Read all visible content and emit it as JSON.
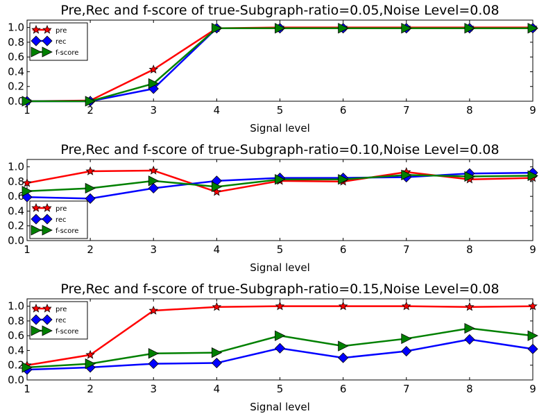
{
  "chart_data": [
    {
      "type": "line",
      "title": "Pre,Rec and f-score of true-Subgraph-ratio=0.05,Noise Level=0.08",
      "xlabel": "Signal level",
      "ylabel": "",
      "x": [
        1,
        2,
        3,
        4,
        5,
        6,
        7,
        8,
        9
      ],
      "xlim": [
        1,
        9
      ],
      "ylim": [
        0.0,
        1.1
      ],
      "xticks": [
        "1",
        "2",
        "3",
        "4",
        "5",
        "6",
        "7",
        "8",
        "9"
      ],
      "yticks": [
        "0.0",
        "0.2",
        "0.4",
        "0.6",
        "0.8",
        "1.0"
      ],
      "legend_position": "upper-left",
      "series": [
        {
          "name": "pre",
          "color": "#ff0000",
          "marker": "star",
          "values": [
            0.0,
            0.01,
            0.43,
            0.99,
            1.0,
            1.0,
            1.0,
            1.0,
            1.0
          ]
        },
        {
          "name": "rec",
          "color": "#0000ff",
          "marker": "diamond",
          "values": [
            0.0,
            0.0,
            0.17,
            0.99,
            0.99,
            0.99,
            0.99,
            0.99,
            0.99
          ]
        },
        {
          "name": "f-score",
          "color": "#008000",
          "marker": "triangle-right",
          "values": [
            0.0,
            0.0,
            0.24,
            0.99,
            0.99,
            0.99,
            0.99,
            0.99,
            0.99
          ]
        }
      ]
    },
    {
      "type": "line",
      "title": "Pre,Rec and f-score of true-Subgraph-ratio=0.10,Noise Level=0.08",
      "xlabel": "Signal level",
      "ylabel": "",
      "x": [
        1,
        2,
        3,
        4,
        5,
        6,
        7,
        8,
        9
      ],
      "xlim": [
        1,
        9
      ],
      "ylim": [
        0.0,
        1.1
      ],
      "xticks": [
        "1",
        "2",
        "3",
        "4",
        "5",
        "6",
        "7",
        "8",
        "9"
      ],
      "yticks": [
        "0.0",
        "0.2",
        "0.4",
        "0.6",
        "0.8",
        "1.0"
      ],
      "legend_position": "lower-left",
      "series": [
        {
          "name": "pre",
          "color": "#ff0000",
          "marker": "star",
          "values": [
            0.78,
            0.94,
            0.95,
            0.66,
            0.81,
            0.8,
            0.93,
            0.83,
            0.85
          ]
        },
        {
          "name": "rec",
          "color": "#0000ff",
          "marker": "diamond",
          "values": [
            0.59,
            0.57,
            0.71,
            0.81,
            0.85,
            0.85,
            0.86,
            0.91,
            0.92
          ]
        },
        {
          "name": "f-score",
          "color": "#008000",
          "marker": "triangle-right",
          "values": [
            0.67,
            0.71,
            0.81,
            0.73,
            0.83,
            0.83,
            0.89,
            0.87,
            0.88
          ]
        }
      ]
    },
    {
      "type": "line",
      "title": "Pre,Rec and f-score of true-Subgraph-ratio=0.15,Noise Level=0.08",
      "xlabel": "Signal level",
      "ylabel": "",
      "x": [
        1,
        2,
        3,
        4,
        5,
        6,
        7,
        8,
        9
      ],
      "xlim": [
        1,
        9
      ],
      "ylim": [
        0.0,
        1.1
      ],
      "xticks": [
        "1",
        "2",
        "3",
        "4",
        "5",
        "6",
        "7",
        "8",
        "9"
      ],
      "yticks": [
        "0.0",
        "0.2",
        "0.4",
        "0.6",
        "0.8",
        "1.0"
      ],
      "legend_position": "upper-left",
      "series": [
        {
          "name": "pre",
          "color": "#ff0000",
          "marker": "star",
          "values": [
            0.2,
            0.34,
            0.94,
            0.99,
            1.0,
            1.0,
            1.0,
            0.99,
            1.0
          ]
        },
        {
          "name": "rec",
          "color": "#0000ff",
          "marker": "diamond",
          "values": [
            0.14,
            0.17,
            0.22,
            0.23,
            0.43,
            0.3,
            0.39,
            0.55,
            0.42
          ]
        },
        {
          "name": "f-score",
          "color": "#008000",
          "marker": "triangle-right",
          "values": [
            0.17,
            0.22,
            0.36,
            0.37,
            0.6,
            0.46,
            0.56,
            0.7,
            0.6
          ]
        }
      ]
    }
  ]
}
